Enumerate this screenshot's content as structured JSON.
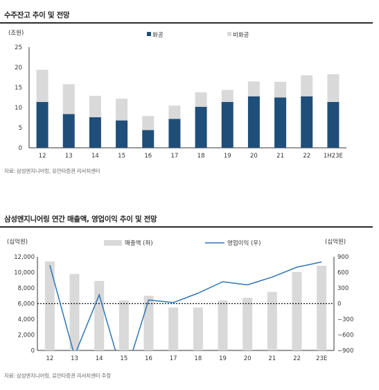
{
  "chart1": {
    "title": "수주잔고 추이 및 전망",
    "source": "자료: 삼성엔지니어링, 유안타증권 리서치센터",
    "colors": {
      "hwagong": "#1f4e79",
      "bihwagong": "#d9d9d9"
    }
  },
  "chart2": {
    "title": "삼성엔지니어링 연간 매출액, 영업이익 추이 및 전망",
    "source": "자료: 삼성엔지니어링, 유안타증권 리서치센터 추정",
    "colors": {
      "bar": "#d9d9d9",
      "line": "#2e75b6"
    }
  },
  "chart_data": [
    {
      "type": "bar",
      "stacked": true,
      "title": "수주잔고 추이 및 전망",
      "ylabel": "(조원)",
      "categories": [
        "12",
        "13",
        "14",
        "15",
        "16",
        "17",
        "18",
        "19",
        "20",
        "21",
        "22",
        "1H23E"
      ],
      "series": [
        {
          "name": "화공",
          "values": [
            11.4,
            8.4,
            7.6,
            6.8,
            4.4,
            7.2,
            10.2,
            11.4,
            12.8,
            12.5,
            12.8,
            11.4
          ]
        },
        {
          "name": "비화공",
          "values": [
            8.0,
            7.4,
            5.3,
            5.4,
            3.5,
            3.3,
            3.6,
            3.0,
            3.7,
            3.9,
            5.2,
            6.9
          ]
        }
      ],
      "ylim": [
        0,
        25
      ],
      "yticks": [
        0,
        5,
        10,
        15,
        20,
        25
      ],
      "legend": "top"
    },
    {
      "type": "bar",
      "title": "삼성엔지니어링 연간 매출액, 영업이익 추이 및 전망",
      "ylabel": "(십억원)",
      "y2label": "(십억원)",
      "categories": [
        "12",
        "13",
        "14",
        "15",
        "16",
        "17",
        "18",
        "19",
        "20",
        "21",
        "22",
        "23E"
      ],
      "series": [
        {
          "name": "매출액 (좌)",
          "type": "bar",
          "axis": "left",
          "values": [
            11400,
            9800,
            8900,
            6400,
            7000,
            5500,
            5500,
            6400,
            6750,
            7500,
            10050,
            10850
          ]
        },
        {
          "name": "영업이익 (우)",
          "type": "line",
          "axis": "right",
          "values": [
            740,
            -1000,
            170,
            -1460,
            70,
            20,
            200,
            420,
            360,
            510,
            700,
            800
          ]
        }
      ],
      "ylim": [
        0,
        12000
      ],
      "yticks": [
        0,
        2000,
        4000,
        6000,
        8000,
        10000,
        12000
      ],
      "y2lim": [
        -900,
        900
      ],
      "y2ticks": [
        -900,
        -600,
        -300,
        0,
        300,
        600,
        900
      ],
      "reference_line": 0,
      "legend": "top"
    }
  ]
}
